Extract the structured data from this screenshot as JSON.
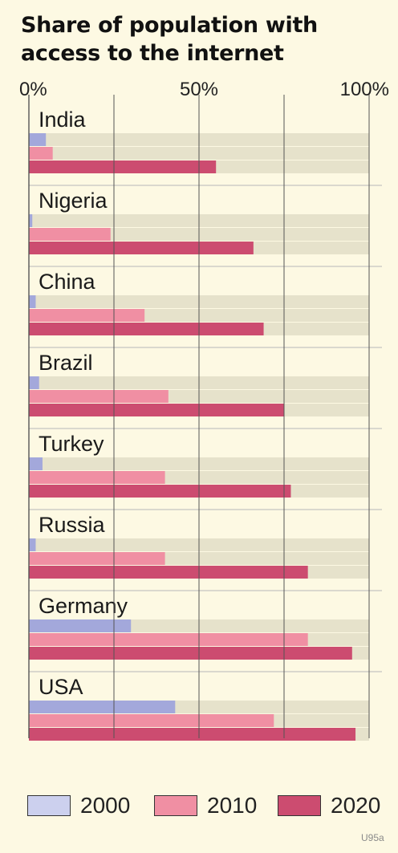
{
  "title": "Share of population with access to the internet",
  "watermark": "U95a",
  "colors": {
    "background": "#fdf9e3",
    "track": "#e6e2cb",
    "gridline": "#555555",
    "separator": "#b8b8b8",
    "2000": "#a3a8db",
    "2010": "#f08fa3",
    "2020": "#cc4c70"
  },
  "chart_data": {
    "type": "bar",
    "orientation": "horizontal",
    "title": "Share of population with access to the internet",
    "categories": [
      "India",
      "Nigeria",
      "China",
      "Brazil",
      "Turkey",
      "Russia",
      "Germany",
      "USA"
    ],
    "series": [
      {
        "name": "2000",
        "color": "#a3a8db",
        "values": [
          5,
          1,
          2,
          3,
          4,
          2,
          30,
          43
        ]
      },
      {
        "name": "2010",
        "color": "#f08fa3",
        "values": [
          7,
          24,
          34,
          41,
          40,
          40,
          82,
          72
        ]
      },
      {
        "name": "2020",
        "color": "#cc4c70",
        "values": [
          55,
          66,
          69,
          75,
          77,
          82,
          95,
          96
        ]
      }
    ],
    "xlim": [
      0,
      100
    ],
    "xticks": [
      "0%",
      "50%",
      "100%"
    ],
    "xtick_values": [
      0,
      50,
      100
    ],
    "gridlines": [
      0,
      25,
      50,
      75,
      100
    ],
    "legend": {
      "position": "bottom",
      "entries": [
        "2000",
        "2010",
        "2020"
      ]
    }
  }
}
